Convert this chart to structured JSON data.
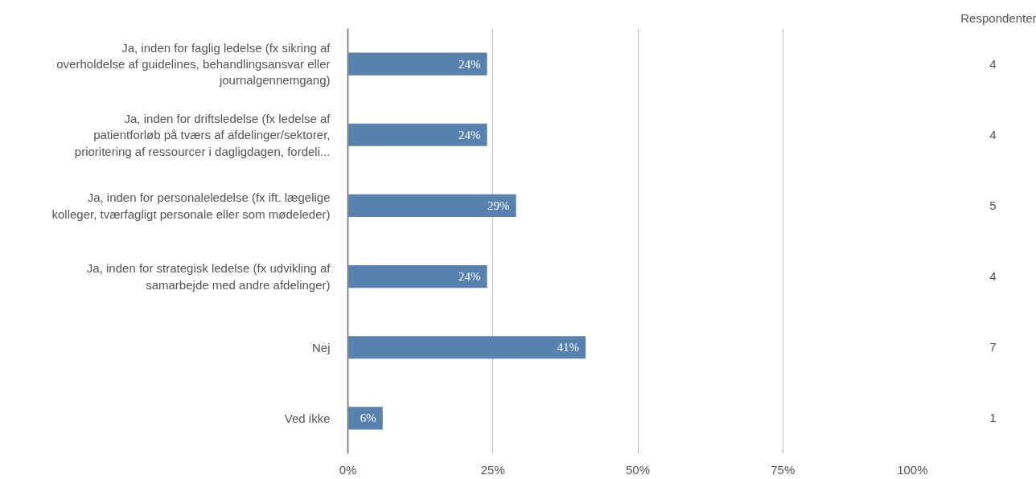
{
  "chart_data": {
    "type": "bar",
    "orientation": "horizontal",
    "categories": [
      "Ja, inden for faglig ledelse (fx sikring af overholdelse af guidelines, behandlingsansvar eller journalgennemgang)",
      "Ja, inden for driftsledelse (fx ledelse af patientforløb på tværs af afdelinger/sektorer, prioritering af ressourcer i dagligdagen, fordeli...",
      "Ja, inden for personaleledelse (fx ift. lægelige kolleger, tværfagligt personale eller som mødeleder)",
      "Ja, inden for strategisk ledelse (fx udvikling af samarbejde med andre afdelinger)",
      "Nej",
      "Ved ikke"
    ],
    "values": [
      24,
      24,
      29,
      24,
      41,
      6
    ],
    "value_labels": [
      "24%",
      "24%",
      "29%",
      "24%",
      "41%",
      "6%"
    ],
    "color": "#5881ad",
    "xlim": [
      0,
      100
    ],
    "xticks": [
      {
        "value": 0,
        "label": "0%"
      },
      {
        "value": 25,
        "label": "25%"
      },
      {
        "value": 50,
        "label": "50%"
      },
      {
        "value": 75,
        "label": "75%"
      },
      {
        "value": 100,
        "label": "100%"
      }
    ],
    "grid": "x",
    "annotations": [
      "Respondenter",
      "4",
      "4",
      "5",
      "4",
      "7",
      "1"
    ]
  }
}
